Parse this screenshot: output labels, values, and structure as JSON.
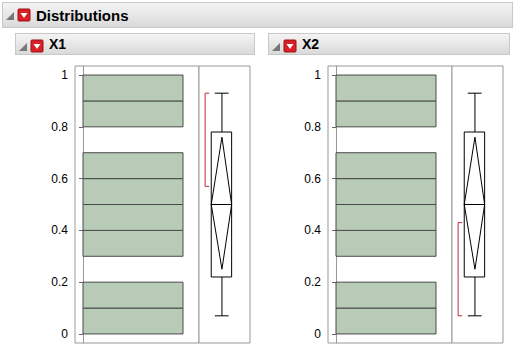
{
  "report_title": "Distributions",
  "chart_data": [
    {
      "type": "histogram",
      "title": "X1",
      "orientation": "horizontal",
      "color": "#b8cbb6",
      "bins": [
        0,
        0.1,
        0.2,
        0.3,
        0.4,
        0.5,
        0.6,
        0.7,
        0.8,
        0.9,
        1
      ],
      "counts": [
        1,
        1,
        0,
        1,
        1,
        1,
        1,
        0,
        1,
        1
      ],
      "ylim": [
        -0.035,
        1.035
      ],
      "yticks": [
        0,
        0.2,
        0.4,
        0.6,
        0.8,
        1
      ],
      "tick_labels": "y",
      "grid": false,
      "box": {
        "min": 0.07,
        "q1": 0.22,
        "median": 0.5,
        "q3": 0.78,
        "max": 0.93
      },
      "mean": 0.5,
      "mean_ci": [
        0.25,
        0.76
      ],
      "shortest_half": [
        0.57,
        0.93
      ]
    },
    {
      "type": "histogram",
      "title": "X2",
      "orientation": "horizontal",
      "color": "#b8cbb6",
      "bins": [
        0,
        0.1,
        0.2,
        0.3,
        0.4,
        0.5,
        0.6,
        0.7,
        0.8,
        0.9,
        1
      ],
      "counts": [
        1,
        1,
        0,
        1,
        1,
        1,
        1,
        0,
        1,
        1
      ],
      "ylim": [
        -0.035,
        1.035
      ],
      "yticks": [
        0,
        0.2,
        0.4,
        0.6,
        0.8,
        1
      ],
      "tick_labels": "y",
      "grid": false,
      "box": {
        "min": 0.07,
        "q1": 0.22,
        "median": 0.5,
        "q3": 0.78,
        "max": 0.93
      },
      "mean": 0.5,
      "mean_ci": [
        0.25,
        0.76
      ],
      "shortest_half": [
        0.07,
        0.43
      ]
    }
  ]
}
